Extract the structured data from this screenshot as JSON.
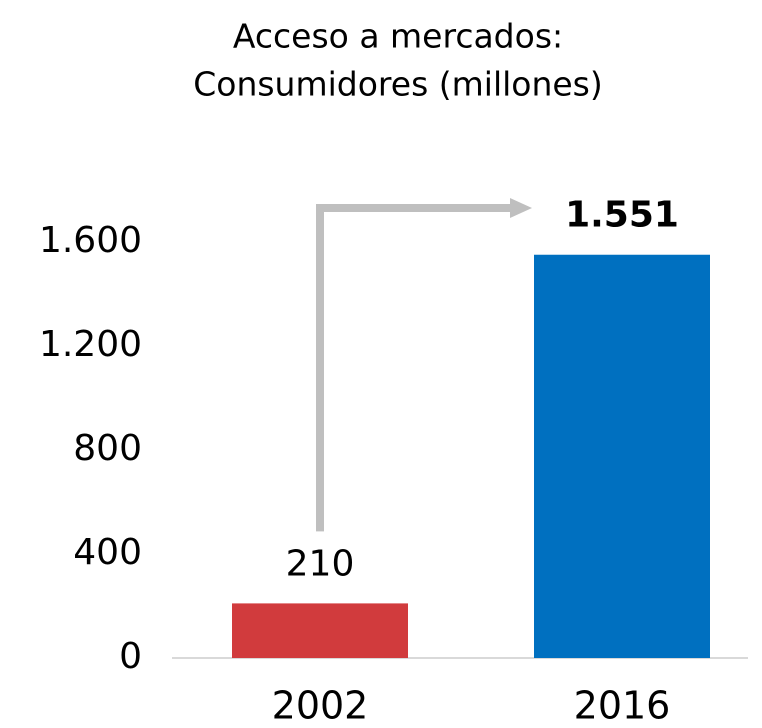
{
  "chart_data": {
    "type": "bar",
    "title": [
      "Acceso a mercados:",
      "Consumidores (millones)"
    ],
    "categories": [
      "2002",
      "2016"
    ],
    "values": [
      210,
      1551
    ],
    "value_labels": [
      "210",
      "1.551"
    ],
    "colors": [
      "#d13b3d",
      "#0070c0"
    ],
    "ylim": [
      0,
      1600
    ],
    "yticks": [
      0,
      400,
      800,
      {
        "value": 1200,
        "label": "1.200"
      },
      {
        "value": 1600,
        "label": "1.600"
      }
    ]
  }
}
